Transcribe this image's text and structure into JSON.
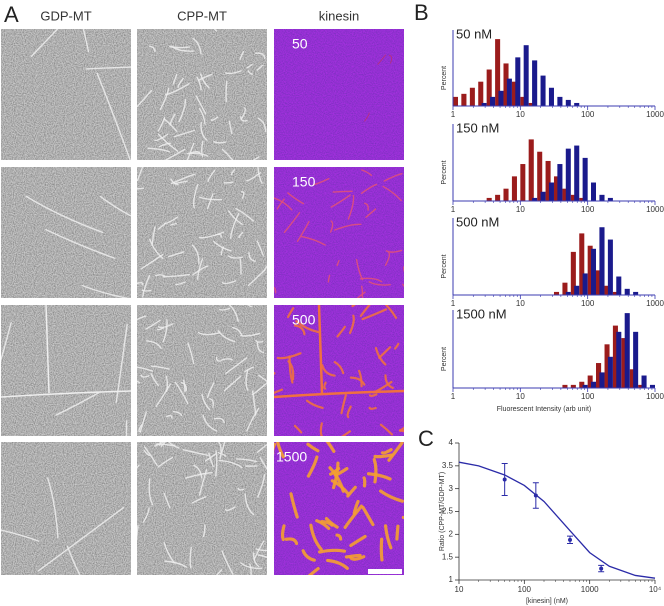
{
  "panel_labels": [
    "A",
    "B",
    "C"
  ],
  "columns": [
    "GDP-MT",
    "CPP-MT",
    "kinesin"
  ],
  "rows": [
    "50",
    "150",
    "500",
    "1500"
  ],
  "chart_data": [
    {
      "type": "histogram",
      "title": "50 nM",
      "ylabel": "Percent",
      "log_x": true,
      "xlim": [
        1,
        1000
      ],
      "xticks": [
        1,
        10,
        100,
        1000
      ],
      "ylim": [
        0,
        25
      ],
      "bins": [
        1,
        1.33,
        1.78,
        2.37,
        3.16,
        4.22,
        5.62,
        7.5,
        10,
        13.3,
        17.8,
        23.7,
        31.6,
        42.2,
        56.2,
        75,
        100,
        133,
        178,
        237,
        316,
        422,
        562,
        750,
        1000
      ],
      "series": [
        {
          "color": "#9b1c1c",
          "values": [
            3,
            4,
            6,
            8,
            12,
            22,
            14,
            8,
            3,
            1,
            0,
            0,
            0,
            0,
            0,
            0,
            0,
            0,
            0,
            0,
            0,
            0,
            0,
            0
          ]
        },
        {
          "color": "#1a1a8c",
          "values": [
            0,
            0,
            0,
            1,
            3,
            5,
            9,
            16,
            20,
            15,
            10,
            6,
            3,
            2,
            1,
            0,
            0,
            0,
            0,
            0,
            0,
            0,
            0,
            0
          ]
        }
      ]
    },
    {
      "type": "histogram",
      "title": "150 nM",
      "ylabel": "Percent",
      "log_x": true,
      "xlim": [
        1,
        1000
      ],
      "xticks": [
        1,
        10,
        100,
        1000
      ],
      "ylim": [
        0,
        25
      ],
      "bins": [
        1,
        1.33,
        1.78,
        2.37,
        3.16,
        4.22,
        5.62,
        7.5,
        10,
        13.3,
        17.8,
        23.7,
        31.6,
        42.2,
        56.2,
        75,
        100,
        133,
        178,
        237,
        316,
        422,
        562,
        750,
        1000
      ],
      "series": [
        {
          "color": "#9b1c1c",
          "values": [
            0,
            0,
            0,
            0,
            1,
            2,
            4,
            8,
            12,
            20,
            16,
            13,
            8,
            4,
            2,
            1,
            0,
            0,
            0,
            0,
            0,
            0,
            0,
            0
          ]
        },
        {
          "color": "#1a1a8c",
          "values": [
            0,
            0,
            0,
            0,
            0,
            0,
            0,
            0,
            0,
            1,
            3,
            6,
            12,
            17,
            18,
            14,
            6,
            2,
            1,
            0,
            0,
            0,
            0,
            0
          ]
        }
      ]
    },
    {
      "type": "histogram",
      "title": "500 nM",
      "ylabel": "Percent",
      "log_x": true,
      "xlim": [
        1,
        1000
      ],
      "xticks": [
        1,
        10,
        100,
        1000
      ],
      "ylim": [
        0,
        25
      ],
      "bins": [
        1,
        1.33,
        1.78,
        2.37,
        3.16,
        4.22,
        5.62,
        7.5,
        10,
        13.3,
        17.8,
        23.7,
        31.6,
        42.2,
        56.2,
        75,
        100,
        133,
        178,
        237,
        316,
        422,
        562,
        750,
        1000
      ],
      "series": [
        {
          "color": "#9b1c1c",
          "values": [
            0,
            0,
            0,
            0,
            0,
            0,
            0,
            0,
            0,
            0,
            0,
            0,
            1,
            4,
            14,
            20,
            16,
            8,
            3,
            1,
            0,
            0,
            0,
            0
          ]
        },
        {
          "color": "#1a1a8c",
          "values": [
            0,
            0,
            0,
            0,
            0,
            0,
            0,
            0,
            0,
            0,
            0,
            0,
            0,
            1,
            3,
            7,
            15,
            22,
            18,
            6,
            2,
            1,
            0,
            0
          ]
        }
      ]
    },
    {
      "type": "histogram",
      "title": "1500 nM",
      "ylabel": "Percent",
      "xlabel": "Fluorescent Intensity (arb unit)",
      "log_x": true,
      "xlim": [
        1,
        1000
      ],
      "xticks": [
        1,
        10,
        100,
        1000
      ],
      "ylim": [
        0,
        25
      ],
      "bins": [
        1,
        1.33,
        1.78,
        2.37,
        3.16,
        4.22,
        5.62,
        7.5,
        10,
        13.3,
        17.8,
        23.7,
        31.6,
        42.2,
        56.2,
        75,
        100,
        133,
        178,
        237,
        316,
        422,
        562,
        750,
        1000
      ],
      "series": [
        {
          "color": "#9b1c1c",
          "values": [
            0,
            0,
            0,
            0,
            0,
            0,
            0,
            0,
            0,
            0,
            0,
            0,
            0,
            1,
            1,
            2,
            4,
            8,
            14,
            20,
            16,
            6,
            1,
            0
          ]
        },
        {
          "color": "#1a1a8c",
          "values": [
            0,
            0,
            0,
            0,
            0,
            0,
            0,
            0,
            0,
            0,
            0,
            0,
            0,
            0,
            0,
            1,
            2,
            5,
            10,
            18,
            24,
            18,
            4,
            1
          ]
        }
      ]
    },
    {
      "type": "line",
      "xlabel": "[kinesin] (nM)",
      "ylabel": "Ratio (CPP-MT/GDP-MT)",
      "log_x": true,
      "xlim": [
        10,
        10000
      ],
      "ylim": [
        1,
        4
      ],
      "xticks": [
        10,
        100,
        1000,
        {
          "value": 10000,
          "label": "10⁴"
        }
      ],
      "yticks": [
        1,
        1.5,
        2,
        2.5,
        3,
        3.5,
        4
      ],
      "series": [
        {
          "color": "#2b2ba8",
          "style": "line",
          "x": [
            10,
            20,
            50,
            100,
            200,
            500,
            1000,
            2000,
            5000,
            10000
          ],
          "values": [
            3.58,
            3.5,
            3.3,
            3.07,
            2.72,
            2.08,
            1.6,
            1.3,
            1.1,
            1.04
          ]
        },
        {
          "color": "#2b2ba8",
          "style": "points",
          "x": [
            50,
            150,
            500,
            1500
          ],
          "values": [
            3.2,
            2.85,
            1.88,
            1.25
          ],
          "errors": [
            0.35,
            0.28,
            0.08,
            0.07
          ]
        }
      ]
    }
  ]
}
